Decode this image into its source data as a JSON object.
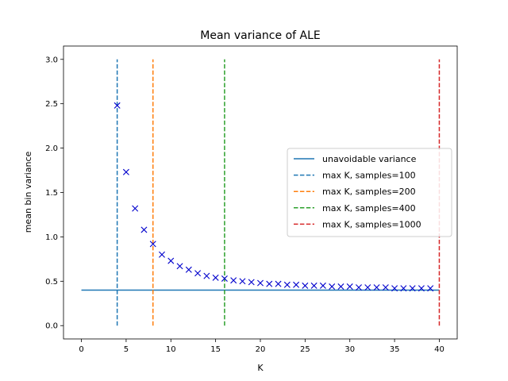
{
  "chart_data": {
    "type": "line",
    "title": "Mean variance of ALE",
    "xlabel": "K",
    "ylabel": "mean bin variance",
    "xlim": [
      -2,
      42
    ],
    "ylim": [
      -0.15,
      3.15
    ],
    "x_ticks": [
      0,
      5,
      10,
      15,
      20,
      25,
      30,
      35,
      40
    ],
    "y_ticks": [
      0.0,
      0.5,
      1.0,
      1.5,
      2.0,
      2.5,
      3.0
    ],
    "x_tick_labels": [
      "0",
      "5",
      "10",
      "15",
      "20",
      "25",
      "30",
      "35",
      "40"
    ],
    "y_tick_labels": [
      "0.0",
      "0.5",
      "1.0",
      "1.5",
      "2.0",
      "2.5",
      "3.0"
    ],
    "grid": false,
    "legend_placement": "center-right",
    "series": [
      {
        "name": "unavoidable variance",
        "kind": "hline",
        "style": "solid",
        "color": "#1f77b4",
        "x": [
          0,
          40
        ],
        "y": [
          0.4,
          0.4
        ]
      },
      {
        "name": "max K, samples=100",
        "kind": "vline",
        "style": "dashed",
        "color": "#1f77b4",
        "x": [
          4,
          4
        ],
        "y": [
          0,
          3
        ]
      },
      {
        "name": "max K, samples=200",
        "kind": "vline",
        "style": "dashed",
        "color": "#ff7f0e",
        "x": [
          8,
          8
        ],
        "y": [
          0,
          3
        ]
      },
      {
        "name": "max K, samples=400",
        "kind": "vline",
        "style": "dashed",
        "color": "#2ca02c",
        "x": [
          16,
          16
        ],
        "y": [
          0,
          3
        ]
      },
      {
        "name": "max K, samples=1000",
        "kind": "vline",
        "style": "dashed",
        "color": "#d62728",
        "x": [
          40,
          40
        ],
        "y": [
          0,
          3
        ]
      },
      {
        "kind": "scatter",
        "marker": "x",
        "color": "#0000cc",
        "x": [
          4,
          5,
          6,
          7,
          8,
          9,
          10,
          11,
          12,
          13,
          14,
          15,
          16,
          17,
          18,
          19,
          20,
          21,
          22,
          23,
          24,
          25,
          26,
          27,
          28,
          29,
          30,
          31,
          32,
          33,
          34,
          35,
          36,
          37,
          38,
          39
        ],
        "y": [
          2.48,
          1.73,
          1.32,
          1.08,
          0.92,
          0.8,
          0.73,
          0.67,
          0.63,
          0.59,
          0.56,
          0.54,
          0.53,
          0.51,
          0.5,
          0.49,
          0.48,
          0.47,
          0.47,
          0.46,
          0.46,
          0.45,
          0.45,
          0.45,
          0.44,
          0.44,
          0.44,
          0.43,
          0.43,
          0.43,
          0.43,
          0.42,
          0.42,
          0.42,
          0.42,
          0.42
        ]
      }
    ]
  }
}
